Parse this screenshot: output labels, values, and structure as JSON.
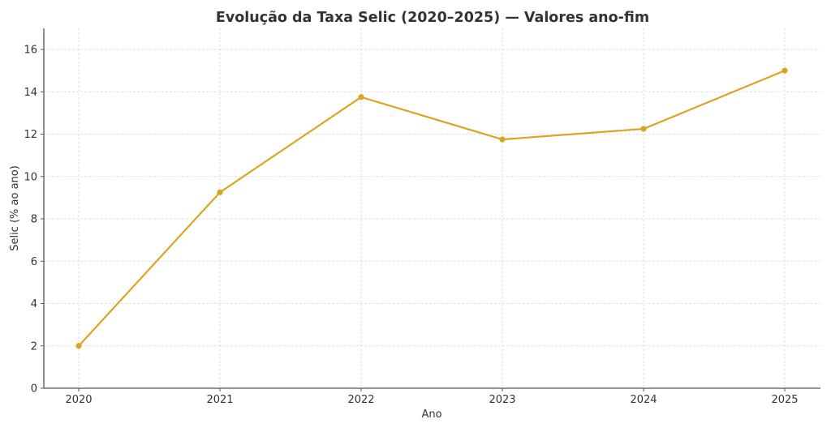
{
  "chart_data": {
    "type": "line",
    "title": "Evolução da Taxa Selic (2020–2025) — Valores ano-fim",
    "xlabel": "Ano",
    "ylabel": "Selic (% ao ano)",
    "categories": [
      "2020",
      "2021",
      "2022",
      "2023",
      "2024",
      "2025"
    ],
    "x": [
      2020,
      2021,
      2022,
      2023,
      2024,
      2025
    ],
    "series": [
      {
        "name": "Selic",
        "values": [
          2.0,
          9.25,
          13.75,
          11.75,
          12.25,
          15.0
        ],
        "color": "#DAA520",
        "marker": "circle"
      }
    ],
    "ylim": [
      0,
      17
    ],
    "yticks": [
      0,
      2,
      4,
      6,
      8,
      10,
      12,
      14,
      16
    ],
    "xlim": [
      2019.75,
      2025.25
    ],
    "grid": true,
    "grid_style": "dashed",
    "legend": null
  },
  "colors": {
    "line": "#DAA520",
    "text": "#333333",
    "grid": "#d9d9d9",
    "spine": "#555555"
  }
}
